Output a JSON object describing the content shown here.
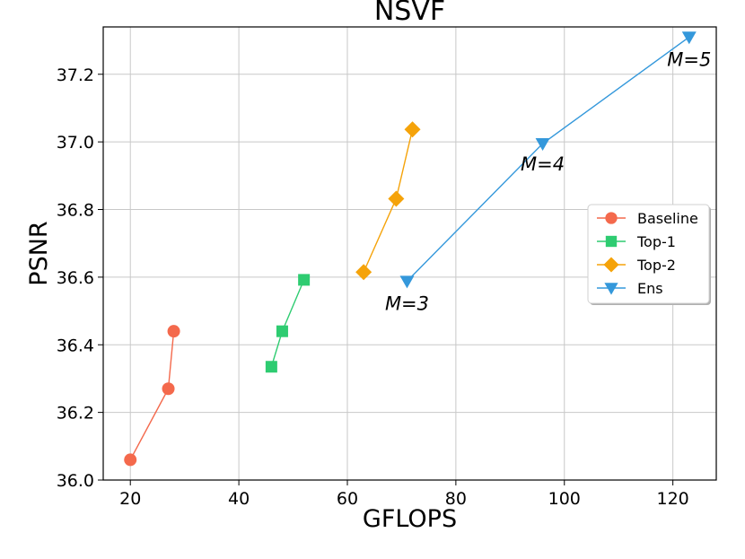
{
  "chart_data": {
    "type": "line",
    "title": "NSVF",
    "xlabel": "GFLOPS",
    "ylabel": "PSNR",
    "xlim": [
      15,
      128
    ],
    "ylim": [
      36.0,
      37.34
    ],
    "xticks": [
      20,
      40,
      60,
      80,
      100,
      120
    ],
    "yticks": [
      36.0,
      36.2,
      36.4,
      36.6,
      36.8,
      37.0,
      37.2
    ],
    "grid": true,
    "legend_position": "center-right",
    "series": [
      {
        "name": "Baseline",
        "color": "#f4694c",
        "marker": "circle",
        "x": [
          20,
          27,
          28
        ],
        "y": [
          36.06,
          36.27,
          36.44
        ]
      },
      {
        "name": "Top-1",
        "color": "#2ecc71",
        "marker": "square",
        "x": [
          46,
          48,
          52
        ],
        "y": [
          36.335,
          36.44,
          36.592
        ]
      },
      {
        "name": "Top-2",
        "color": "#f5a30a",
        "marker": "diamond",
        "x": [
          63,
          69,
          72
        ],
        "y": [
          36.615,
          36.832,
          37.037
        ]
      },
      {
        "name": "Ens",
        "color": "#3498db",
        "marker": "triangle-down",
        "x": [
          71,
          96,
          123
        ],
        "y": [
          36.588,
          36.995,
          37.31
        ]
      }
    ],
    "annotations": [
      {
        "text": "M=3",
        "x": 71,
        "y": 36.588
      },
      {
        "text": "M=4",
        "x": 96,
        "y": 36.995
      },
      {
        "text": "M=5",
        "x": 123,
        "y": 37.31
      }
    ]
  }
}
